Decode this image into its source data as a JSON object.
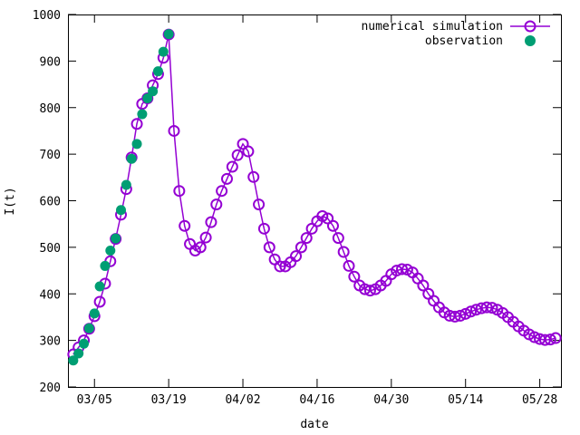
{
  "chart_data": {
    "type": "line",
    "xlabel": "date",
    "ylabel": "I(t)",
    "xlim": [
      "2020-02-29",
      "2020-06-01"
    ],
    "ylim": [
      200,
      1000
    ],
    "x_ticks": [
      "03/05",
      "03/19",
      "04/02",
      "04/16",
      "04/30",
      "05/14",
      "05/28"
    ],
    "y_ticks": [
      "200",
      "300",
      "400",
      "500",
      "600",
      "700",
      "800",
      "900",
      "1000"
    ],
    "grid": false,
    "legend_position": "top-right",
    "colors": {
      "simulation": "#9400d3",
      "observation": "#009e73"
    },
    "series": [
      {
        "name": "numerical simulation",
        "style": "line-with-open-circles",
        "x": [
          "2020-03-01",
          "2020-03-02",
          "2020-03-03",
          "2020-03-04",
          "2020-03-05",
          "2020-03-06",
          "2020-03-07",
          "2020-03-08",
          "2020-03-09",
          "2020-03-10",
          "2020-03-11",
          "2020-03-12",
          "2020-03-13",
          "2020-03-14",
          "2020-03-15",
          "2020-03-16",
          "2020-03-17",
          "2020-03-18",
          "2020-03-19",
          "2020-03-20",
          "2020-03-21",
          "2020-03-22",
          "2020-03-23",
          "2020-03-24",
          "2020-03-25",
          "2020-03-26",
          "2020-03-27",
          "2020-03-28",
          "2020-03-29",
          "2020-03-30",
          "2020-03-31",
          "2020-04-01",
          "2020-04-02",
          "2020-04-03",
          "2020-04-04",
          "2020-04-05",
          "2020-04-06",
          "2020-04-07",
          "2020-04-08",
          "2020-04-09",
          "2020-04-10",
          "2020-04-11",
          "2020-04-12",
          "2020-04-13",
          "2020-04-14",
          "2020-04-15",
          "2020-04-16",
          "2020-04-17",
          "2020-04-18",
          "2020-04-19",
          "2020-04-20",
          "2020-04-21",
          "2020-04-22",
          "2020-04-23",
          "2020-04-24",
          "2020-04-25",
          "2020-04-26",
          "2020-04-27",
          "2020-04-28",
          "2020-04-29",
          "2020-04-30",
          "2020-05-01",
          "2020-05-02",
          "2020-05-03",
          "2020-05-04",
          "2020-05-05",
          "2020-05-06",
          "2020-05-07",
          "2020-05-08",
          "2020-05-09",
          "2020-05-10",
          "2020-05-11",
          "2020-05-12",
          "2020-05-13",
          "2020-05-14",
          "2020-05-15",
          "2020-05-16",
          "2020-05-17",
          "2020-05-18",
          "2020-05-19",
          "2020-05-20",
          "2020-05-21",
          "2020-05-22",
          "2020-05-23",
          "2020-05-24",
          "2020-05-25",
          "2020-05-26",
          "2020-05-27",
          "2020-05-28",
          "2020-05-29",
          "2020-05-30",
          "2020-05-31"
        ],
        "y": [
          270,
          285,
          300,
          325,
          352,
          383,
          422,
          470,
          518,
          570,
          625,
          693,
          765,
          808,
          820,
          848,
          872,
          907,
          957,
          750,
          621,
          546,
          507,
          493,
          500,
          521,
          554,
          592,
          621,
          647,
          673,
          698,
          722,
          706,
          651,
          592,
          540,
          500,
          474,
          459,
          459,
          468,
          481,
          500,
          520,
          540,
          556,
          567,
          562,
          546,
          520,
          490,
          460,
          437,
          418,
          410,
          407,
          410,
          418,
          428,
          442,
          450,
          453,
          452,
          446,
          433,
          418,
          400,
          385,
          371,
          360,
          353,
          351,
          353,
          357,
          362,
          366,
          369,
          371,
          370,
          366,
          359,
          350,
          340,
          330,
          321,
          313,
          307,
          303,
          301,
          302,
          305
        ]
      },
      {
        "name": "observation",
        "style": "filled-circles",
        "x": [
          "2020-03-01",
          "2020-03-02",
          "2020-03-03",
          "2020-03-04",
          "2020-03-05",
          "2020-03-06",
          "2020-03-07",
          "2020-03-08",
          "2020-03-09",
          "2020-03-10",
          "2020-03-11",
          "2020-03-12",
          "2020-03-13",
          "2020-03-14",
          "2020-03-15",
          "2020-03-16",
          "2020-03-17",
          "2020-03-18",
          "2020-03-19"
        ],
        "y": [
          257,
          272,
          293,
          326,
          358,
          416,
          460,
          493,
          519,
          580,
          634,
          690,
          722,
          786,
          820,
          835,
          878,
          920,
          958
        ]
      }
    ]
  }
}
